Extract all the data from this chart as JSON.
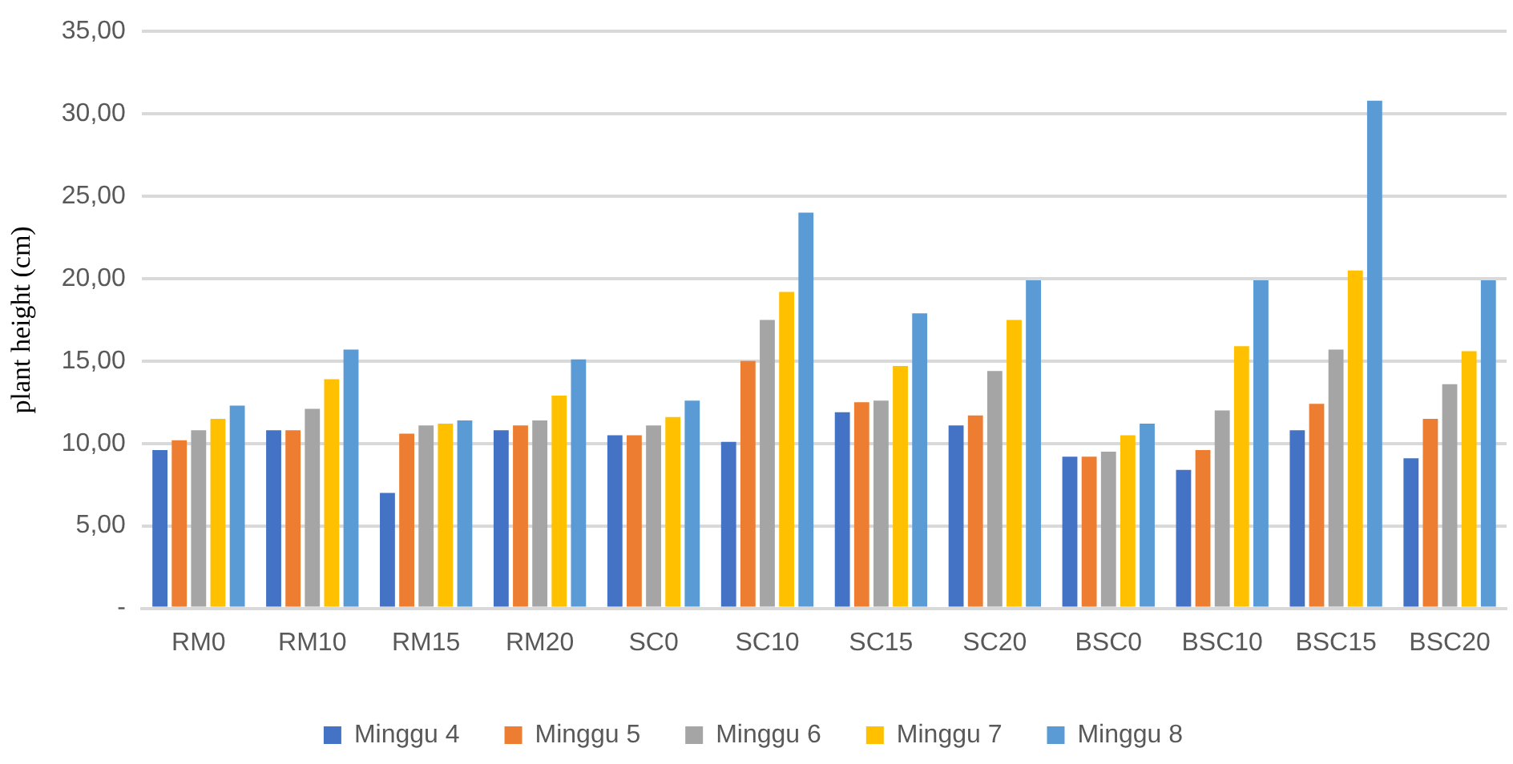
{
  "chart_data": {
    "type": "bar",
    "ylabel": "plant height (cm)",
    "categories": [
      "RM0",
      "RM10",
      "RM15",
      "RM20",
      "SC0",
      "SC10",
      "SC15",
      "SC20",
      "BSC0",
      "BSC10",
      "BSC15",
      "BSC20"
    ],
    "series": [
      {
        "name": "Minggu 4",
        "color": "#4472c4",
        "values": [
          9.6,
          10.8,
          7.0,
          10.8,
          10.5,
          10.1,
          11.9,
          11.1,
          9.2,
          8.4,
          10.8,
          9.1
        ]
      },
      {
        "name": "Minggu 5",
        "color": "#ed7d31",
        "values": [
          10.2,
          10.8,
          10.6,
          11.1,
          10.5,
          15.0,
          12.5,
          11.7,
          9.2,
          9.6,
          12.4,
          11.5
        ]
      },
      {
        "name": "Minggu 6",
        "color": "#a5a5a5",
        "values": [
          10.8,
          12.1,
          11.1,
          11.4,
          11.1,
          17.5,
          12.6,
          14.4,
          9.5,
          12.0,
          15.7,
          13.6
        ]
      },
      {
        "name": "Minggu 7",
        "color": "#ffc000",
        "values": [
          11.5,
          13.9,
          11.2,
          12.9,
          11.6,
          19.2,
          14.7,
          17.5,
          10.5,
          15.9,
          20.5,
          15.6
        ]
      },
      {
        "name": "Minggu 8",
        "color": "#5b9bd5",
        "values": [
          12.3,
          15.7,
          11.4,
          15.1,
          12.6,
          24.0,
          17.9,
          19.9,
          11.2,
          19.9,
          30.8,
          19.9
        ]
      }
    ],
    "ylim": [
      0,
      35
    ],
    "yticks": [
      {
        "value": 0,
        "label": "-"
      },
      {
        "value": 5,
        "label": "5,00"
      },
      {
        "value": 10,
        "label": "10,00"
      },
      {
        "value": 15,
        "label": "15,00"
      },
      {
        "value": 20,
        "label": "20,00"
      },
      {
        "value": 25,
        "label": "25,00"
      },
      {
        "value": 30,
        "label": "30,00"
      },
      {
        "value": 35,
        "label": "35,00"
      }
    ],
    "grid": "y",
    "legend": "bottom"
  }
}
